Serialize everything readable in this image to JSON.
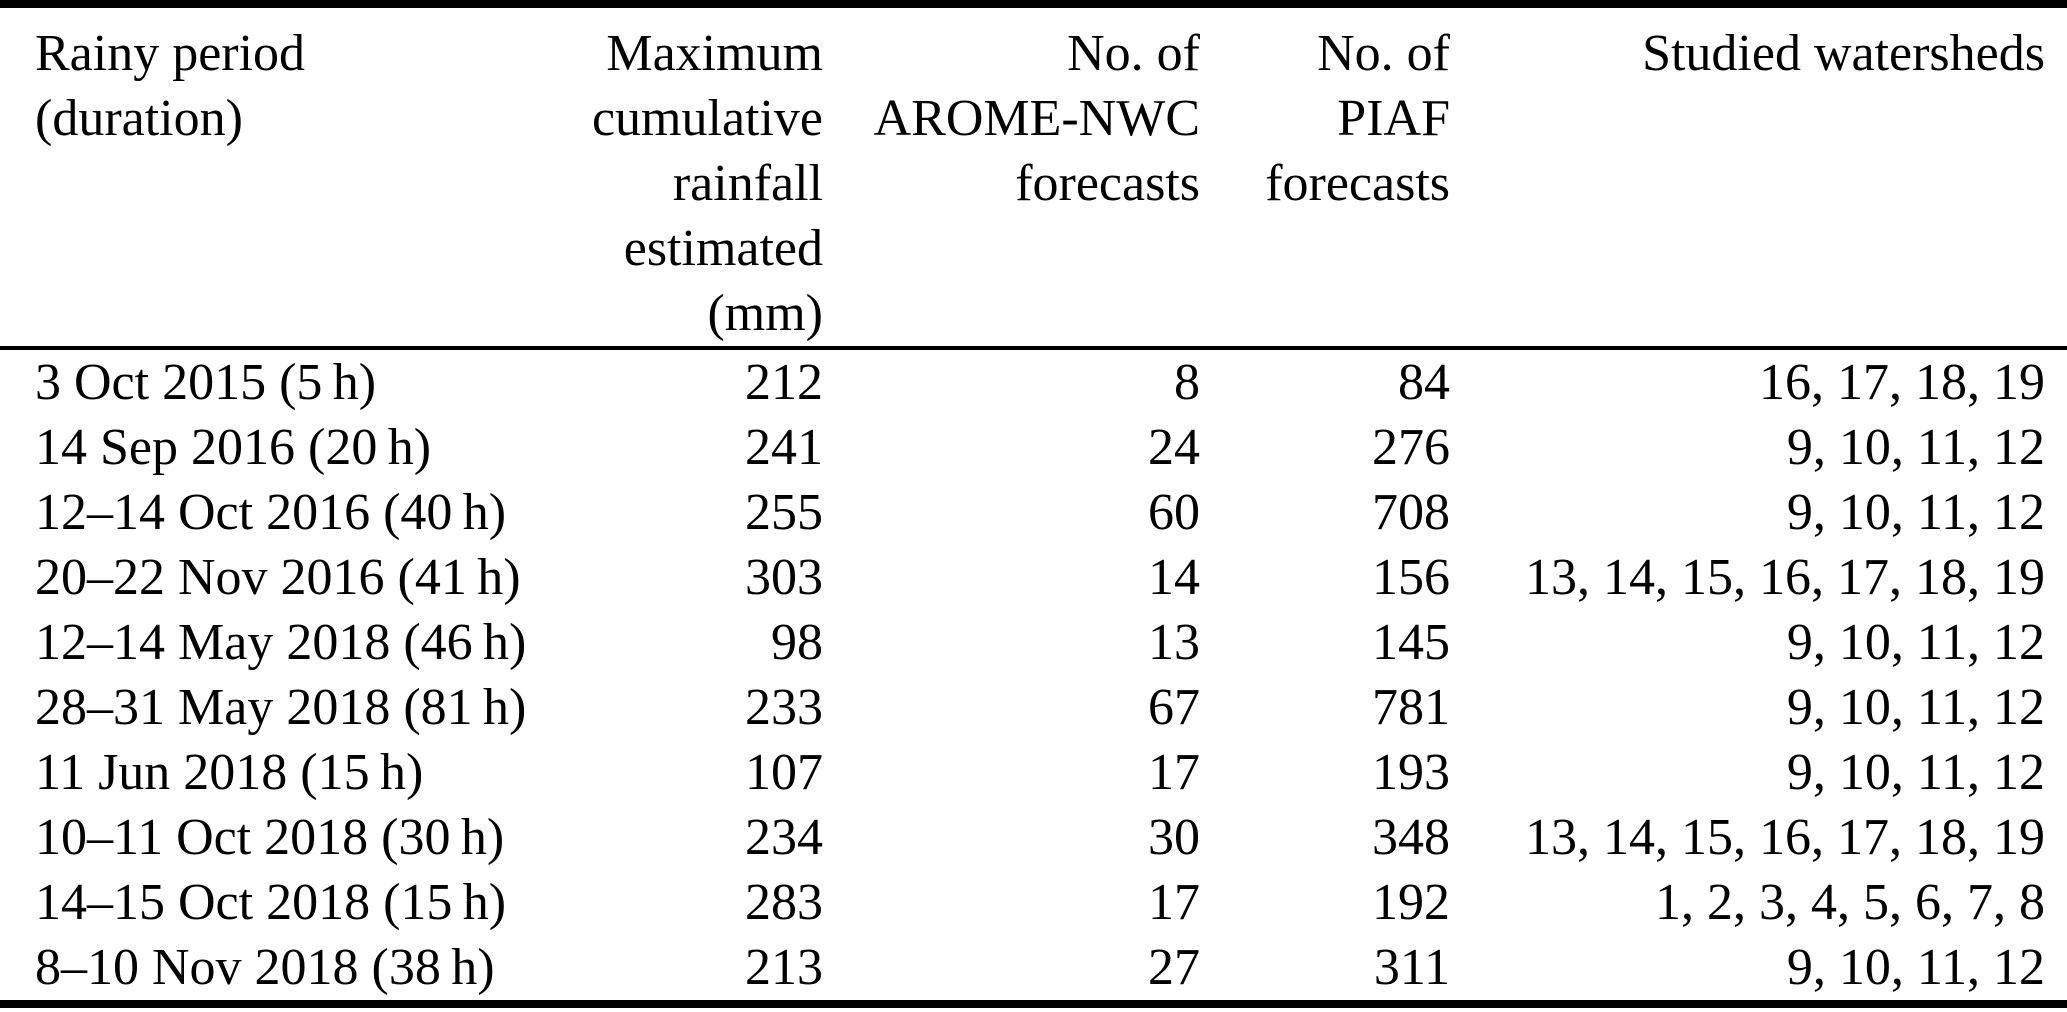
{
  "colors": {
    "text": "#000000",
    "background": "#ffffff",
    "rule": "#000000"
  },
  "table": {
    "columns": [
      {
        "label": "Rainy period\n(duration)"
      },
      {
        "label": "Maximum\ncumulative\nrainfall\nestimated\n(mm)"
      },
      {
        "label": "No. of\nAROME-NWC\nforecasts"
      },
      {
        "label": "No. of\nPIAF\nforecasts"
      },
      {
        "label": "Studied watersheds"
      }
    ],
    "rows": [
      {
        "period": "3 Oct 2015 (5 h)",
        "max_rainfall_mm": "212",
        "arome_nwc_forecasts": "8",
        "piaf_forecasts": "84",
        "watersheds": "16, 17, 18, 19"
      },
      {
        "period": "14 Sep 2016 (20 h)",
        "max_rainfall_mm": "241",
        "arome_nwc_forecasts": "24",
        "piaf_forecasts": "276",
        "watersheds": "9, 10, 11, 12"
      },
      {
        "period": "12–14 Oct 2016 (40 h)",
        "max_rainfall_mm": "255",
        "arome_nwc_forecasts": "60",
        "piaf_forecasts": "708",
        "watersheds": "9, 10, 11, 12"
      },
      {
        "period": "20–22 Nov 2016 (41 h)",
        "max_rainfall_mm": "303",
        "arome_nwc_forecasts": "14",
        "piaf_forecasts": "156",
        "watersheds": "13, 14, 15, 16, 17, 18, 19"
      },
      {
        "period": "12–14 May 2018 (46 h)",
        "max_rainfall_mm": "98",
        "arome_nwc_forecasts": "13",
        "piaf_forecasts": "145",
        "watersheds": "9, 10, 11, 12"
      },
      {
        "period": "28–31 May 2018 (81 h)",
        "max_rainfall_mm": "233",
        "arome_nwc_forecasts": "67",
        "piaf_forecasts": "781",
        "watersheds": "9, 10, 11, 12"
      },
      {
        "period": "11 Jun 2018 (15 h)",
        "max_rainfall_mm": "107",
        "arome_nwc_forecasts": "17",
        "piaf_forecasts": "193",
        "watersheds": "9, 10, 11, 12"
      },
      {
        "period": "10–11 Oct 2018 (30 h)",
        "max_rainfall_mm": "234",
        "arome_nwc_forecasts": "30",
        "piaf_forecasts": "348",
        "watersheds": "13, 14, 15, 16, 17, 18, 19"
      },
      {
        "period": "14–15 Oct 2018 (15 h)",
        "max_rainfall_mm": "283",
        "arome_nwc_forecasts": "17",
        "piaf_forecasts": "192",
        "watersheds": "1, 2, 3, 4, 5, 6, 7, 8"
      },
      {
        "period": "8–10 Nov 2018 (38 h)",
        "max_rainfall_mm": "213",
        "arome_nwc_forecasts": "27",
        "piaf_forecasts": "311",
        "watersheds": "9, 10, 11, 12"
      }
    ]
  }
}
